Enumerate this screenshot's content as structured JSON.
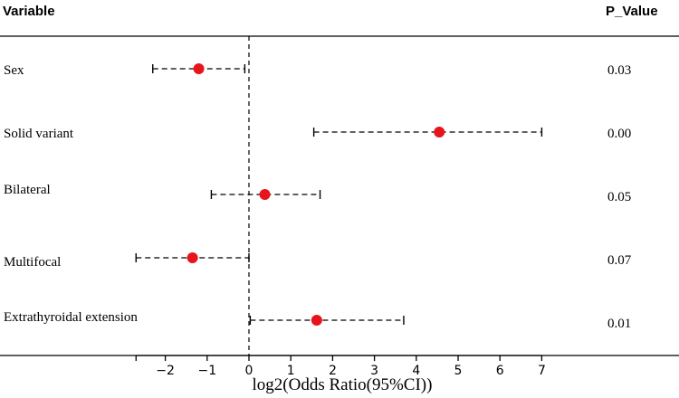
{
  "chart_data": {
    "type": "forest",
    "header": {
      "variable": "Variable",
      "p_value": "P_Value"
    },
    "xlabel": "log2(Odds Ratio(95%CI))",
    "xlim": [
      -2.7,
      7
    ],
    "xticks": [
      -2,
      -1,
      0,
      1,
      2,
      3,
      4,
      5,
      6,
      7
    ],
    "xtick_labels": [
      "−2",
      "−1",
      "0",
      "1",
      "2",
      "3",
      "4",
      "5",
      "6",
      "7"
    ],
    "reference_line": 0,
    "point_color": "#e8141c",
    "rows": [
      {
        "variable": "Sex",
        "estimate": -1.2,
        "lower": -2.3,
        "upper": -0.1,
        "p_value": "0.03"
      },
      {
        "variable": "Solid variant",
        "estimate": 4.55,
        "lower": 1.55,
        "upper": 7.0,
        "p_value": "0.00"
      },
      {
        "variable": "Bilateral",
        "estimate": 0.38,
        "lower": -0.9,
        "upper": 1.7,
        "p_value": "0.05"
      },
      {
        "variable": "Multifocal",
        "estimate": -1.35,
        "lower": -2.7,
        "upper": 0.0,
        "p_value": "0.07"
      },
      {
        "variable": "Extrathyroidal extension",
        "estimate": 1.62,
        "lower": 0.03,
        "upper": 3.7,
        "p_value": "0.01"
      }
    ]
  }
}
